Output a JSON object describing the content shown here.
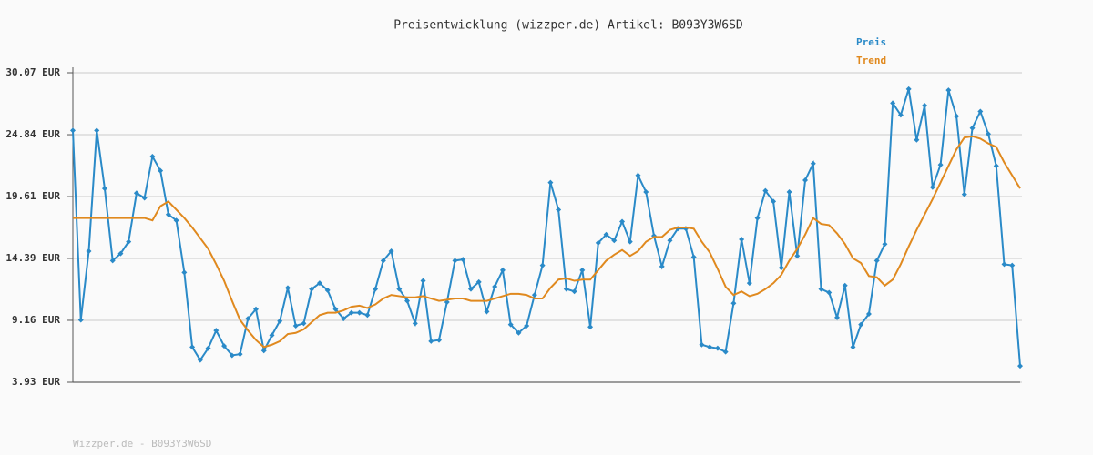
{
  "chart_data": {
    "type": "line",
    "title": "Preisentwicklung (wizzper.de) Artikel: B093Y3W6SD",
    "footer": "Wizzper.de - B093Y3W6SD",
    "ylim": [
      3.93,
      30.07
    ],
    "yticks": [
      {
        "value": 3.93,
        "label": "3.93 EUR"
      },
      {
        "value": 9.16,
        "label": "9.16 EUR"
      },
      {
        "value": 14.39,
        "label": "14.39 EUR"
      },
      {
        "value": 19.61,
        "label": "19.61 EUR"
      },
      {
        "value": 24.84,
        "label": "24.84 EUR"
      },
      {
        "value": 30.07,
        "label": "30.07 EUR"
      }
    ],
    "grid": true,
    "series": [
      {
        "name": "Preis",
        "color": "#2a8ac8",
        "markers": true,
        "values": [
          25.2,
          9.2,
          15,
          25.2,
          20.3,
          14.2,
          14.8,
          15.8,
          19.9,
          19.5,
          23,
          21.8,
          18.1,
          17.6,
          13.2,
          6.9,
          5.8,
          6.8,
          8.3,
          7,
          6.2,
          6.3,
          9.3,
          10.1,
          6.6,
          7.9,
          9.1,
          11.9,
          8.7,
          8.9,
          11.8,
          12.3,
          11.7,
          10.1,
          9.3,
          9.8,
          9.8,
          9.6,
          11.8,
          14.2,
          15,
          11.8,
          10.8,
          8.9,
          12.5,
          7.4,
          7.5,
          10.7,
          14.2,
          14.3,
          11.8,
          12.4,
          9.9,
          12,
          13.4,
          8.8,
          8.1,
          8.7,
          11.3,
          13.8,
          20.8,
          18.5,
          11.8,
          11.6,
          13.4,
          8.6,
          15.7,
          16.4,
          15.9,
          17.5,
          15.8,
          21.4,
          20,
          16.3,
          13.7,
          15.9,
          16.9,
          16.9,
          14.5,
          7.1,
          6.9,
          6.8,
          6.5,
          10.6,
          16,
          12.3,
          17.8,
          20.1,
          19.2,
          13.6,
          20,
          14.6,
          21,
          22.4,
          11.8,
          11.5,
          9.4,
          12.1,
          6.9,
          8.8,
          9.7,
          14.2,
          15.6,
          27.5,
          26.5,
          28.7,
          24.4,
          27.3,
          20.4,
          22.3,
          28.6,
          26.4,
          19.8,
          25.4,
          26.8,
          24.9,
          22.2,
          13.9,
          13.8,
          5.3
        ]
      },
      {
        "name": "Trend",
        "color": "#e0891e",
        "markers": false,
        "values": [
          17.8,
          17.8,
          17.8,
          17.8,
          17.8,
          17.8,
          17.8,
          17.8,
          17.8,
          17.8,
          17.6,
          18.8,
          19.2,
          18.5,
          17.8,
          17,
          16.1,
          15.2,
          13.9,
          12.5,
          10.8,
          9.2,
          8.3,
          7.5,
          6.9,
          7.1,
          7.4,
          8,
          8.1,
          8.4,
          9,
          9.6,
          9.8,
          9.8,
          10,
          10.3,
          10.4,
          10.2,
          10.5,
          11,
          11.3,
          11.2,
          11.1,
          11.1,
          11.2,
          11,
          10.8,
          10.9,
          11,
          11,
          10.8,
          10.8,
          10.8,
          11,
          11.2,
          11.4,
          11.4,
          11.3,
          11,
          11,
          11.9,
          12.6,
          12.7,
          12.5,
          12.6,
          12.6,
          13.4,
          14.2,
          14.7,
          15.1,
          14.6,
          15,
          15.8,
          16.2,
          16.2,
          16.8,
          17,
          17,
          16.9,
          15.8,
          14.9,
          13.5,
          12,
          11.3,
          11.6,
          11.2,
          11.4,
          11.8,
          12.3,
          13,
          14.2,
          15.2,
          16.4,
          17.8,
          17.3,
          17.2,
          16.5,
          15.6,
          14.4,
          14,
          12.9,
          12.8,
          12.1,
          12.6,
          13.9,
          15.4,
          16.8,
          18.1,
          19.4,
          20.8,
          22.2,
          23.6,
          24.6,
          24.7,
          24.5,
          24.1,
          23.8,
          22.5,
          21.4,
          20.3
        ]
      }
    ]
  }
}
